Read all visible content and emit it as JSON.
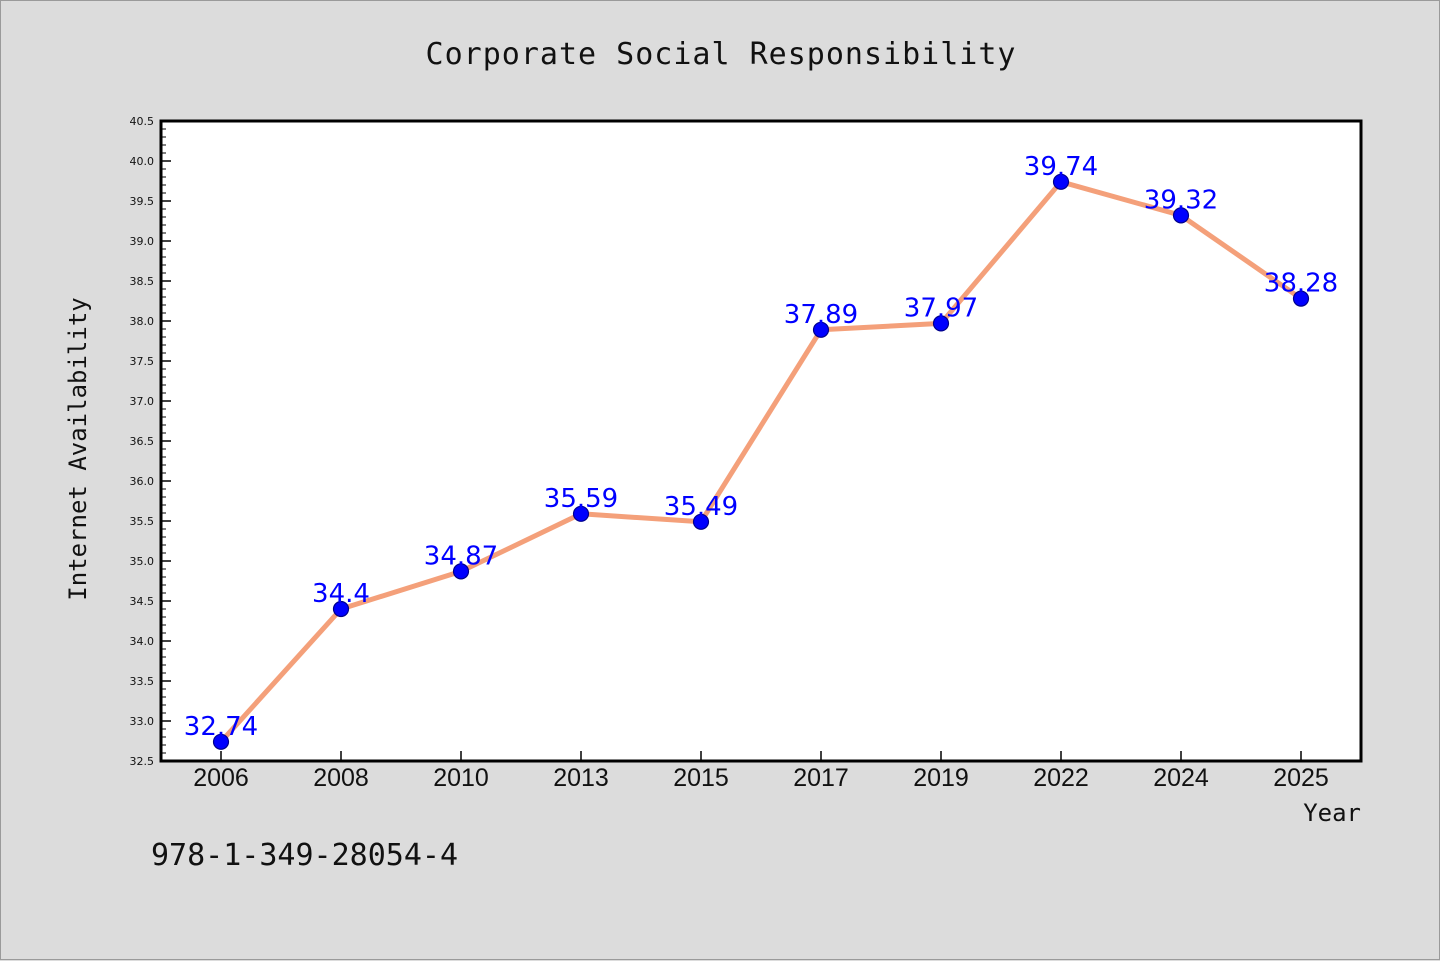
{
  "chart_data": {
    "type": "line",
    "title": "Corporate Social Responsibility",
    "xlabel": "Year",
    "ylabel": "Internet Availability",
    "categories": [
      "2006",
      "2008",
      "2010",
      "2013",
      "2015",
      "2017",
      "2019",
      "2022",
      "2024",
      "2025"
    ],
    "series": [
      {
        "values": [
          32.74,
          34.4,
          34.87,
          35.59,
          35.49,
          37.89,
          37.97,
          39.74,
          39.32,
          38.28
        ],
        "labels": [
          "32.74",
          "34.4",
          "34.87",
          "35.59",
          "35.49",
          "37.89",
          "37.97",
          "39.74",
          "39.32",
          "38.28"
        ],
        "line_color": "#f4a07a",
        "marker_color": "#0000ff"
      }
    ],
    "ylim": [
      32.5,
      40.5
    ],
    "yticks": [
      "32.5",
      "33.0",
      "33.5",
      "34.0",
      "34.5",
      "35.0",
      "35.5",
      "36.0",
      "36.5",
      "37.0",
      "37.5",
      "38.0",
      "38.5",
      "39.0",
      "39.5",
      "40.0",
      "40.5"
    ],
    "grid": false,
    "legend": "none"
  },
  "footer": {
    "code": "978-1-349-28054-4"
  },
  "colors": {
    "background": "#dcdcdc",
    "plot_background": "#ffffff",
    "axis": "#000000",
    "line": "#f4a07a",
    "marker": "#0000ff",
    "data_label": "#0000ff"
  }
}
